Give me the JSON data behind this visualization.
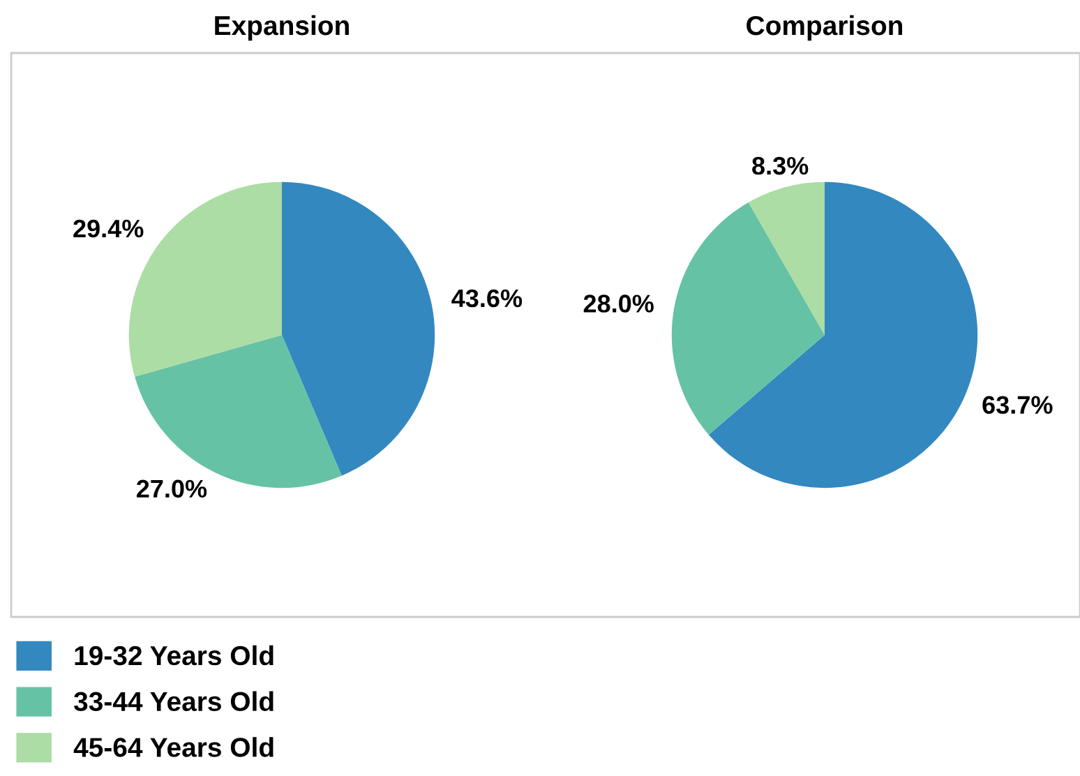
{
  "chart_data": [
    {
      "type": "pie",
      "title": "Expansion",
      "categories": [
        "19-32 Years Old",
        "33-44 Years Old",
        "45-64 Years Old"
      ],
      "values": [
        43.6,
        27.0,
        29.4
      ],
      "colors": [
        "#3388c0",
        "#66c2a5",
        "#abdda4"
      ],
      "value_labels": [
        "43.6%",
        "27.0%",
        "29.4%"
      ],
      "legend": "bottom left"
    },
    {
      "type": "pie",
      "title": "Comparison",
      "values": [
        63.7,
        28.0,
        8.3
      ],
      "colors": [
        "#3388c0",
        "#66c2a5",
        "#abdda4"
      ],
      "value_labels": [
        "63.7%",
        "28.0%",
        "8.3%"
      ]
    }
  ]
}
